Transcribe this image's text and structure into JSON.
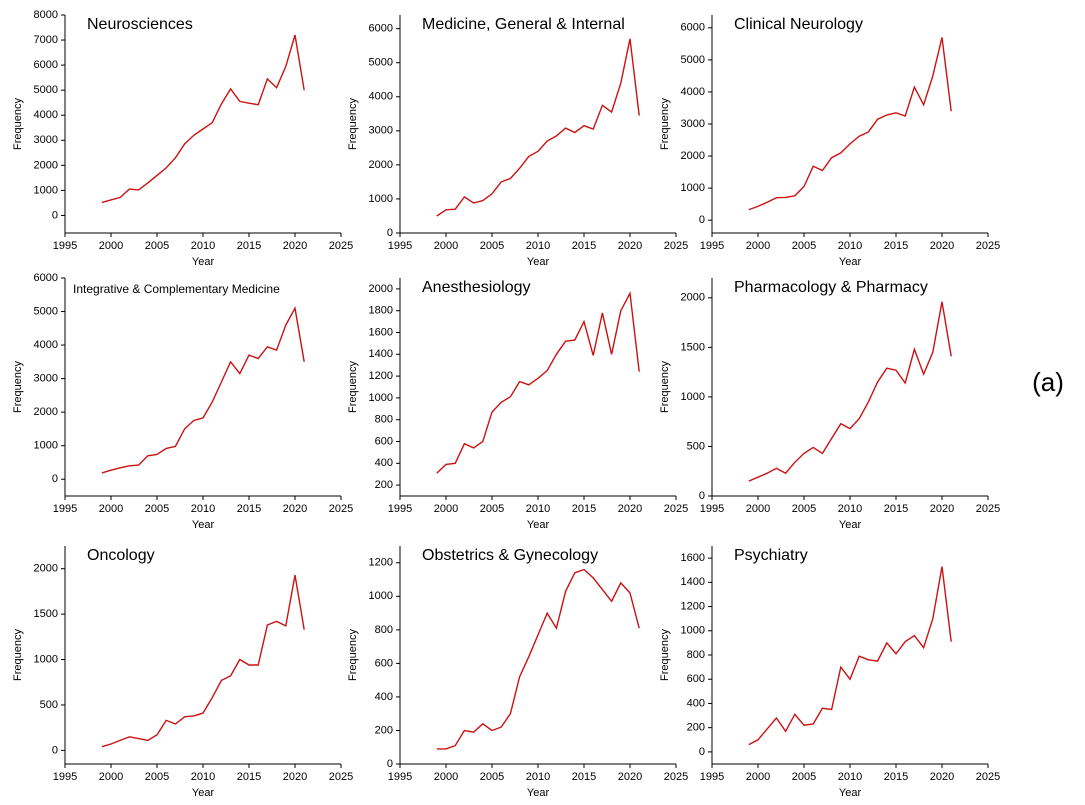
{
  "panel_label": "(a)",
  "chart_data": [
    {
      "type": "line",
      "title": "Neurosciences",
      "xlabel": "Year",
      "ylabel": "Frequency",
      "x": [
        1999,
        2000,
        2001,
        2002,
        2003,
        2004,
        2005,
        2006,
        2007,
        2008,
        2009,
        2010,
        2011,
        2012,
        2013,
        2014,
        2015,
        2016,
        2017,
        2018,
        2019,
        2020,
        2021
      ],
      "series": [
        {
          "color": "#cc1111",
          "values": [
            520,
            620,
            720,
            1050,
            1020,
            1300,
            1600,
            1900,
            2300,
            2850,
            3200,
            3450,
            3700,
            4450,
            5050,
            4550,
            4480,
            4420,
            5450,
            5100,
            5950,
            7200,
            5000
          ]
        }
      ],
      "xlim": [
        1995,
        2025
      ],
      "xticks": [
        1995,
        2000,
        2005,
        2010,
        2015,
        2020,
        2025
      ],
      "ylim": [
        -700,
        8000
      ],
      "yticks": [
        0,
        1000,
        2000,
        3000,
        4000,
        5000,
        6000,
        7000,
        8000
      ]
    },
    {
      "type": "line",
      "title": "Medicine, General & Internal",
      "xlabel": "Year",
      "ylabel": "Frequency",
      "x": [
        1999,
        2000,
        2001,
        2002,
        2003,
        2004,
        2005,
        2006,
        2007,
        2008,
        2009,
        2010,
        2011,
        2012,
        2013,
        2014,
        2015,
        2016,
        2017,
        2018,
        2019,
        2020,
        2021
      ],
      "series": [
        {
          "color": "#cc1111",
          "values": [
            500,
            680,
            700,
            1060,
            880,
            950,
            1150,
            1500,
            1600,
            1900,
            2250,
            2400,
            2700,
            2850,
            3080,
            2950,
            3150,
            3050,
            3750,
            3550,
            4400,
            5700,
            3450
          ]
        }
      ],
      "xlim": [
        1995,
        2025
      ],
      "xticks": [
        1995,
        2000,
        2005,
        2010,
        2015,
        2020,
        2025
      ],
      "ylim": [
        0,
        6400
      ],
      "yticks": [
        0,
        1000,
        2000,
        3000,
        4000,
        5000,
        6000
      ]
    },
    {
      "type": "line",
      "title": "Clinical Neurology",
      "xlabel": "Year",
      "ylabel": "Frequency",
      "x": [
        1999,
        2000,
        2001,
        2002,
        2003,
        2004,
        2005,
        2006,
        2007,
        2008,
        2009,
        2010,
        2011,
        2012,
        2013,
        2014,
        2015,
        2016,
        2017,
        2018,
        2019,
        2020,
        2021
      ],
      "series": [
        {
          "color": "#cc1111",
          "values": [
            330,
            430,
            560,
            700,
            710,
            760,
            1050,
            1680,
            1550,
            1950,
            2100,
            2380,
            2620,
            2750,
            3150,
            3280,
            3350,
            3250,
            4150,
            3600,
            4500,
            5700,
            3400
          ]
        }
      ],
      "xlim": [
        1995,
        2025
      ],
      "xticks": [
        1995,
        2000,
        2005,
        2010,
        2015,
        2020,
        2025
      ],
      "ylim": [
        -400,
        6400
      ],
      "yticks": [
        0,
        1000,
        2000,
        3000,
        4000,
        5000,
        6000
      ]
    },
    {
      "type": "line",
      "title": "Integrative & Complementary Medicine",
      "xlabel": "Year",
      "ylabel": "Frequency",
      "x": [
        1999,
        2000,
        2001,
        2002,
        2003,
        2004,
        2005,
        2006,
        2007,
        2008,
        2009,
        2010,
        2011,
        2012,
        2013,
        2014,
        2015,
        2016,
        2017,
        2018,
        2019,
        2020,
        2021
      ],
      "series": [
        {
          "color": "#cc1111",
          "values": [
            190,
            270,
            340,
            400,
            420,
            700,
            740,
            920,
            980,
            1500,
            1750,
            1830,
            2300,
            2900,
            3500,
            3150,
            3700,
            3600,
            3950,
            3850,
            4600,
            5100,
            3500
          ]
        }
      ],
      "xlim": [
        1995,
        2025
      ],
      "xticks": [
        1995,
        2000,
        2005,
        2010,
        2015,
        2020,
        2025
      ],
      "ylim": [
        -500,
        6000
      ],
      "yticks": [
        0,
        1000,
        2000,
        3000,
        4000,
        5000,
        6000
      ]
    },
    {
      "type": "line",
      "title": "Anesthesiology",
      "xlabel": "Year",
      "ylabel": "Frequency",
      "x": [
        1999,
        2000,
        2001,
        2002,
        2003,
        2004,
        2005,
        2006,
        2007,
        2008,
        2009,
        2010,
        2011,
        2012,
        2013,
        2014,
        2015,
        2016,
        2017,
        2018,
        2019,
        2020,
        2021
      ],
      "series": [
        {
          "color": "#cc1111",
          "values": [
            310,
            390,
            400,
            580,
            540,
            600,
            870,
            960,
            1010,
            1150,
            1120,
            1180,
            1250,
            1400,
            1520,
            1530,
            1700,
            1390,
            1780,
            1400,
            1800,
            1960,
            1240
          ]
        }
      ],
      "xlim": [
        1995,
        2025
      ],
      "xticks": [
        1995,
        2000,
        2005,
        2010,
        2015,
        2020,
        2025
      ],
      "ylim": [
        100,
        2100
      ],
      "yticks": [
        200,
        400,
        600,
        800,
        1000,
        1200,
        1400,
        1600,
        1800,
        2000
      ]
    },
    {
      "type": "line",
      "title": "Pharmacology & Pharmacy",
      "xlabel": "Year",
      "ylabel": "Frequency",
      "x": [
        1999,
        2000,
        2001,
        2002,
        2003,
        2004,
        2005,
        2006,
        2007,
        2008,
        2009,
        2010,
        2011,
        2012,
        2013,
        2014,
        2015,
        2016,
        2017,
        2018,
        2019,
        2020,
        2021
      ],
      "series": [
        {
          "color": "#cc1111",
          "values": [
            150,
            190,
            230,
            280,
            230,
            340,
            430,
            490,
            430,
            580,
            730,
            680,
            780,
            950,
            1150,
            1290,
            1270,
            1140,
            1480,
            1230,
            1450,
            1960,
            1410
          ]
        }
      ],
      "xlim": [
        1995,
        2025
      ],
      "xticks": [
        1995,
        2000,
        2005,
        2010,
        2015,
        2020,
        2025
      ],
      "ylim": [
        0,
        2200
      ],
      "yticks": [
        0,
        500,
        1000,
        1500,
        2000
      ]
    },
    {
      "type": "line",
      "title": "Oncology",
      "xlabel": "Year",
      "ylabel": "Frequency",
      "x": [
        1999,
        2000,
        2001,
        2002,
        2003,
        2004,
        2005,
        2006,
        2007,
        2008,
        2009,
        2010,
        2011,
        2012,
        2013,
        2014,
        2015,
        2016,
        2017,
        2018,
        2019,
        2020,
        2021
      ],
      "series": [
        {
          "color": "#cc1111",
          "values": [
            40,
            70,
            110,
            150,
            130,
            110,
            170,
            330,
            290,
            370,
            380,
            410,
            580,
            770,
            820,
            1000,
            940,
            940,
            1380,
            1420,
            1370,
            1930,
            1330
          ]
        }
      ],
      "xlim": [
        1995,
        2025
      ],
      "xticks": [
        1995,
        2000,
        2005,
        2010,
        2015,
        2020,
        2025
      ],
      "ylim": [
        -150,
        2250
      ],
      "yticks": [
        0,
        500,
        1000,
        1500,
        2000
      ]
    },
    {
      "type": "line",
      "title": "Obstetrics & Gynecology",
      "xlabel": "Year",
      "ylabel": "Frequency",
      "x": [
        1999,
        2000,
        2001,
        2002,
        2003,
        2004,
        2005,
        2006,
        2007,
        2008,
        2009,
        2010,
        2011,
        2012,
        2013,
        2014,
        2015,
        2016,
        2017,
        2018,
        2019,
        2020,
        2021
      ],
      "series": [
        {
          "color": "#cc1111",
          "values": [
            90,
            90,
            110,
            200,
            190,
            240,
            200,
            220,
            300,
            520,
            640,
            770,
            900,
            810,
            1030,
            1140,
            1160,
            1110,
            1040,
            970,
            1080,
            1020,
            810
          ]
        }
      ],
      "xlim": [
        1995,
        2025
      ],
      "xticks": [
        1995,
        2000,
        2005,
        2010,
        2015,
        2020,
        2025
      ],
      "ylim": [
        0,
        1300
      ],
      "yticks": [
        0,
        200,
        400,
        600,
        800,
        1000,
        1200
      ]
    },
    {
      "type": "line",
      "title": "Psychiatry",
      "xlabel": "Year",
      "ylabel": "Frequency",
      "x": [
        1999,
        2000,
        2001,
        2002,
        2003,
        2004,
        2005,
        2006,
        2007,
        2008,
        2009,
        2010,
        2011,
        2012,
        2013,
        2014,
        2015,
        2016,
        2017,
        2018,
        2019,
        2020,
        2021
      ],
      "series": [
        {
          "color": "#cc1111",
          "values": [
            60,
            100,
            190,
            280,
            170,
            310,
            220,
            230,
            360,
            350,
            700,
            600,
            790,
            760,
            750,
            900,
            810,
            910,
            960,
            860,
            1100,
            1530,
            910
          ]
        }
      ],
      "xlim": [
        1995,
        2025
      ],
      "xticks": [
        1995,
        2000,
        2005,
        2010,
        2015,
        2020,
        2025
      ],
      "ylim": [
        -100,
        1700
      ],
      "yticks": [
        0,
        200,
        400,
        600,
        800,
        1000,
        1200,
        1400,
        1600
      ]
    }
  ]
}
